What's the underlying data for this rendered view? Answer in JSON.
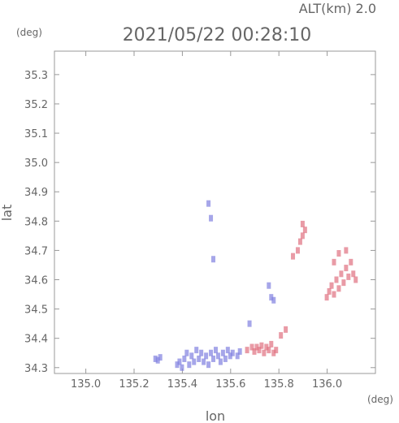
{
  "chart_data": {
    "type": "scatter",
    "header": {
      "altitude": "ALT(km) 2.0",
      "datetime": "2021/05/22 00:28:10"
    },
    "xlabel": "lon",
    "ylabel": "lat",
    "x_unit": "(deg)",
    "y_unit": "(deg)",
    "xlim": [
      134.87,
      136.2
    ],
    "ylim": [
      34.28,
      35.38
    ],
    "xticks": [
      135.0,
      135.2,
      135.4,
      135.6,
      135.8,
      136.0
    ],
    "xtick_labels": [
      "135.0",
      "135.2",
      "135.4",
      "135.6",
      "135.8",
      "136.0"
    ],
    "yticks": [
      34.3,
      34.4,
      34.5,
      34.6,
      34.7,
      34.8,
      34.9,
      35.0,
      35.1,
      35.2,
      35.3
    ],
    "ytick_labels": [
      "34.3",
      "34.4",
      "34.5",
      "34.6",
      "34.7",
      "34.8",
      "34.9",
      "35.0",
      "35.1",
      "35.2",
      "35.3"
    ],
    "grid": false,
    "colors": {
      "approach": "#8080e0",
      "recede": "#e07080",
      "axis": "#999999",
      "text": "#666666"
    },
    "points": [
      {
        "x": 135.29,
        "y": 34.33,
        "c": "approach"
      },
      {
        "x": 135.3,
        "y": 34.325,
        "c": "approach"
      },
      {
        "x": 135.31,
        "y": 34.335,
        "c": "approach"
      },
      {
        "x": 135.38,
        "y": 34.31,
        "c": "approach"
      },
      {
        "x": 135.39,
        "y": 34.32,
        "c": "approach"
      },
      {
        "x": 135.4,
        "y": 34.3,
        "c": "approach"
      },
      {
        "x": 135.41,
        "y": 34.33,
        "c": "approach"
      },
      {
        "x": 135.42,
        "y": 34.35,
        "c": "approach"
      },
      {
        "x": 135.43,
        "y": 34.31,
        "c": "approach"
      },
      {
        "x": 135.44,
        "y": 34.34,
        "c": "approach"
      },
      {
        "x": 135.45,
        "y": 34.32,
        "c": "approach"
      },
      {
        "x": 135.46,
        "y": 34.36,
        "c": "approach"
      },
      {
        "x": 135.47,
        "y": 34.33,
        "c": "approach"
      },
      {
        "x": 135.48,
        "y": 34.35,
        "c": "approach"
      },
      {
        "x": 135.49,
        "y": 34.32,
        "c": "approach"
      },
      {
        "x": 135.5,
        "y": 34.34,
        "c": "approach"
      },
      {
        "x": 135.51,
        "y": 34.31,
        "c": "approach"
      },
      {
        "x": 135.52,
        "y": 34.35,
        "c": "approach"
      },
      {
        "x": 135.53,
        "y": 34.33,
        "c": "approach"
      },
      {
        "x": 135.54,
        "y": 34.36,
        "c": "approach"
      },
      {
        "x": 135.55,
        "y": 34.34,
        "c": "approach"
      },
      {
        "x": 135.56,
        "y": 34.32,
        "c": "approach"
      },
      {
        "x": 135.57,
        "y": 34.35,
        "c": "approach"
      },
      {
        "x": 135.58,
        "y": 34.33,
        "c": "approach"
      },
      {
        "x": 135.59,
        "y": 34.36,
        "c": "approach"
      },
      {
        "x": 135.6,
        "y": 34.34,
        "c": "approach"
      },
      {
        "x": 135.61,
        "y": 34.35,
        "c": "approach"
      },
      {
        "x": 135.63,
        "y": 34.34,
        "c": "approach"
      },
      {
        "x": 135.64,
        "y": 34.355,
        "c": "approach"
      },
      {
        "x": 135.52,
        "y": 34.81,
        "c": "approach"
      },
      {
        "x": 135.51,
        "y": 34.86,
        "c": "approach"
      },
      {
        "x": 135.53,
        "y": 34.67,
        "c": "approach"
      },
      {
        "x": 135.77,
        "y": 34.54,
        "c": "approach"
      },
      {
        "x": 135.78,
        "y": 34.53,
        "c": "approach"
      },
      {
        "x": 135.76,
        "y": 34.58,
        "c": "approach"
      },
      {
        "x": 135.68,
        "y": 34.45,
        "c": "approach"
      },
      {
        "x": 135.67,
        "y": 34.36,
        "c": "recede"
      },
      {
        "x": 135.69,
        "y": 34.37,
        "c": "recede"
      },
      {
        "x": 135.7,
        "y": 34.355,
        "c": "recede"
      },
      {
        "x": 135.71,
        "y": 34.37,
        "c": "recede"
      },
      {
        "x": 135.72,
        "y": 34.36,
        "c": "recede"
      },
      {
        "x": 135.73,
        "y": 34.375,
        "c": "recede"
      },
      {
        "x": 135.74,
        "y": 34.35,
        "c": "recede"
      },
      {
        "x": 135.75,
        "y": 34.37,
        "c": "recede"
      },
      {
        "x": 135.76,
        "y": 34.36,
        "c": "recede"
      },
      {
        "x": 135.77,
        "y": 34.38,
        "c": "recede"
      },
      {
        "x": 135.78,
        "y": 34.35,
        "c": "recede"
      },
      {
        "x": 135.79,
        "y": 34.36,
        "c": "recede"
      },
      {
        "x": 135.81,
        "y": 34.41,
        "c": "recede"
      },
      {
        "x": 135.83,
        "y": 34.43,
        "c": "recede"
      },
      {
        "x": 135.86,
        "y": 34.68,
        "c": "recede"
      },
      {
        "x": 135.88,
        "y": 34.7,
        "c": "recede"
      },
      {
        "x": 135.89,
        "y": 34.73,
        "c": "recede"
      },
      {
        "x": 135.9,
        "y": 34.75,
        "c": "recede"
      },
      {
        "x": 135.91,
        "y": 34.77,
        "c": "recede"
      },
      {
        "x": 135.9,
        "y": 34.79,
        "c": "recede"
      },
      {
        "x": 136.0,
        "y": 34.54,
        "c": "recede"
      },
      {
        "x": 136.01,
        "y": 34.56,
        "c": "recede"
      },
      {
        "x": 136.02,
        "y": 34.58,
        "c": "recede"
      },
      {
        "x": 136.03,
        "y": 34.55,
        "c": "recede"
      },
      {
        "x": 136.04,
        "y": 34.6,
        "c": "recede"
      },
      {
        "x": 136.05,
        "y": 34.57,
        "c": "recede"
      },
      {
        "x": 136.06,
        "y": 34.62,
        "c": "recede"
      },
      {
        "x": 136.07,
        "y": 34.59,
        "c": "recede"
      },
      {
        "x": 136.08,
        "y": 34.64,
        "c": "recede"
      },
      {
        "x": 136.09,
        "y": 34.61,
        "c": "recede"
      },
      {
        "x": 136.1,
        "y": 34.66,
        "c": "recede"
      },
      {
        "x": 136.11,
        "y": 34.62,
        "c": "recede"
      },
      {
        "x": 136.12,
        "y": 34.6,
        "c": "recede"
      },
      {
        "x": 136.05,
        "y": 34.69,
        "c": "recede"
      },
      {
        "x": 136.08,
        "y": 34.7,
        "c": "recede"
      },
      {
        "x": 136.03,
        "y": 34.66,
        "c": "recede"
      }
    ]
  }
}
